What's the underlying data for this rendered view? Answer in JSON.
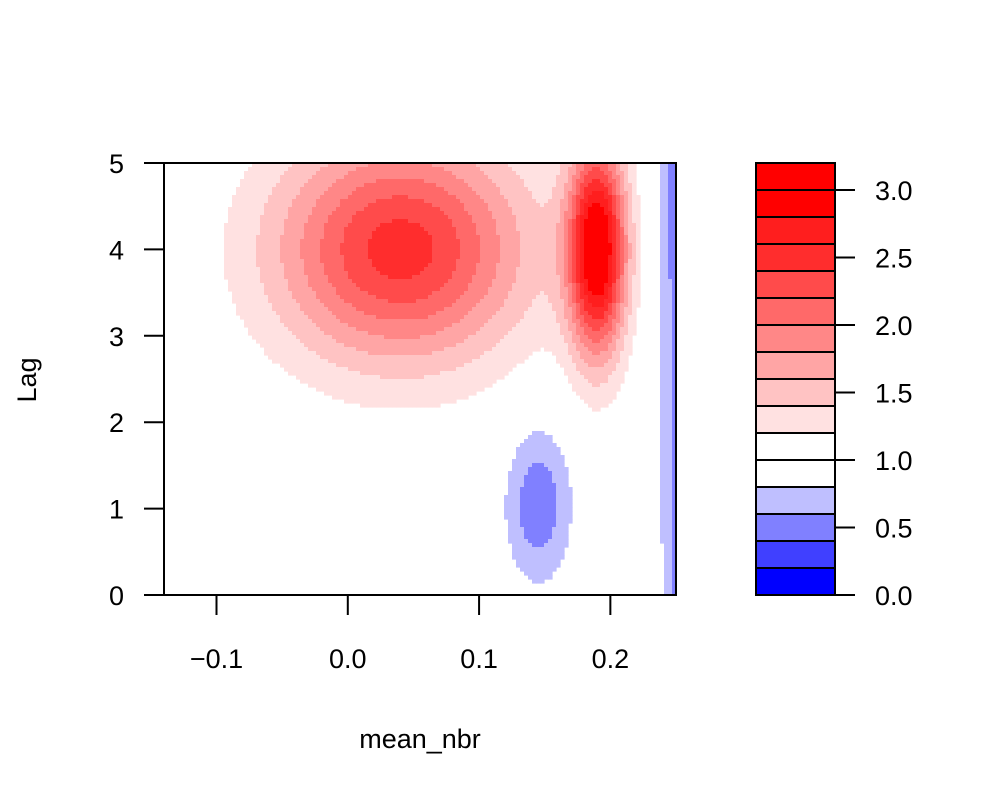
{
  "chart_data": {
    "type": "contour",
    "title": "",
    "xlabel": "mean_nbr",
    "ylabel": "Lag",
    "xlim": [
      -0.14,
      0.25
    ],
    "ylim": [
      0,
      5
    ],
    "x_ticks": [
      -0.1,
      0.0,
      0.1,
      0.2
    ],
    "x_tick_labels": [
      "−0.1",
      "0.0",
      "0.1",
      "0.2"
    ],
    "y_ticks": [
      0,
      1,
      2,
      3,
      4,
      5
    ],
    "y_tick_labels": [
      "0",
      "1",
      "2",
      "3",
      "4",
      "5"
    ],
    "colorbar": {
      "min": 0.0,
      "max": 3.2,
      "step": 0.2,
      "ticks": [
        0.0,
        0.5,
        1.0,
        1.5,
        2.0,
        2.5,
        3.0
      ],
      "tick_labels": [
        "0.0",
        "0.5",
        "1.0",
        "1.5",
        "2.0",
        "2.5",
        "3.0"
      ],
      "colors": [
        "#0000ff",
        "#4040ff",
        "#8080ff",
        "#bfbfff",
        "#ffffff",
        "#ffffff",
        "#ffe1e1",
        "#ffc3c3",
        "#ffa5a5",
        "#ff8787",
        "#ff6969",
        "#ff4b4b",
        "#ff2d2d",
        "#ff1e1e",
        "#ff0000",
        "#ff0000"
      ]
    },
    "grid": false,
    "regions": [
      {
        "name": "red-lobe-central",
        "value_range": [
          1.0,
          2.6
        ],
        "peak": {
          "x": 0.04,
          "y": 4.0,
          "value": 2.5
        }
      },
      {
        "name": "red-lobe-right",
        "value_range": [
          1.0,
          3.2
        ],
        "peak": {
          "x": 0.19,
          "y": 4.0,
          "value": 3.1
        }
      },
      {
        "name": "blue-patch-lower",
        "value_range": [
          0.4,
          1.0
        ],
        "peak": {
          "x": 0.15,
          "y": 1.0,
          "value": 0.5
        }
      },
      {
        "name": "blue-edge-right",
        "value_range": [
          0.0,
          1.0
        ],
        "peak": {
          "x": 0.25,
          "y": 5.0,
          "value": 0.0
        }
      }
    ]
  }
}
